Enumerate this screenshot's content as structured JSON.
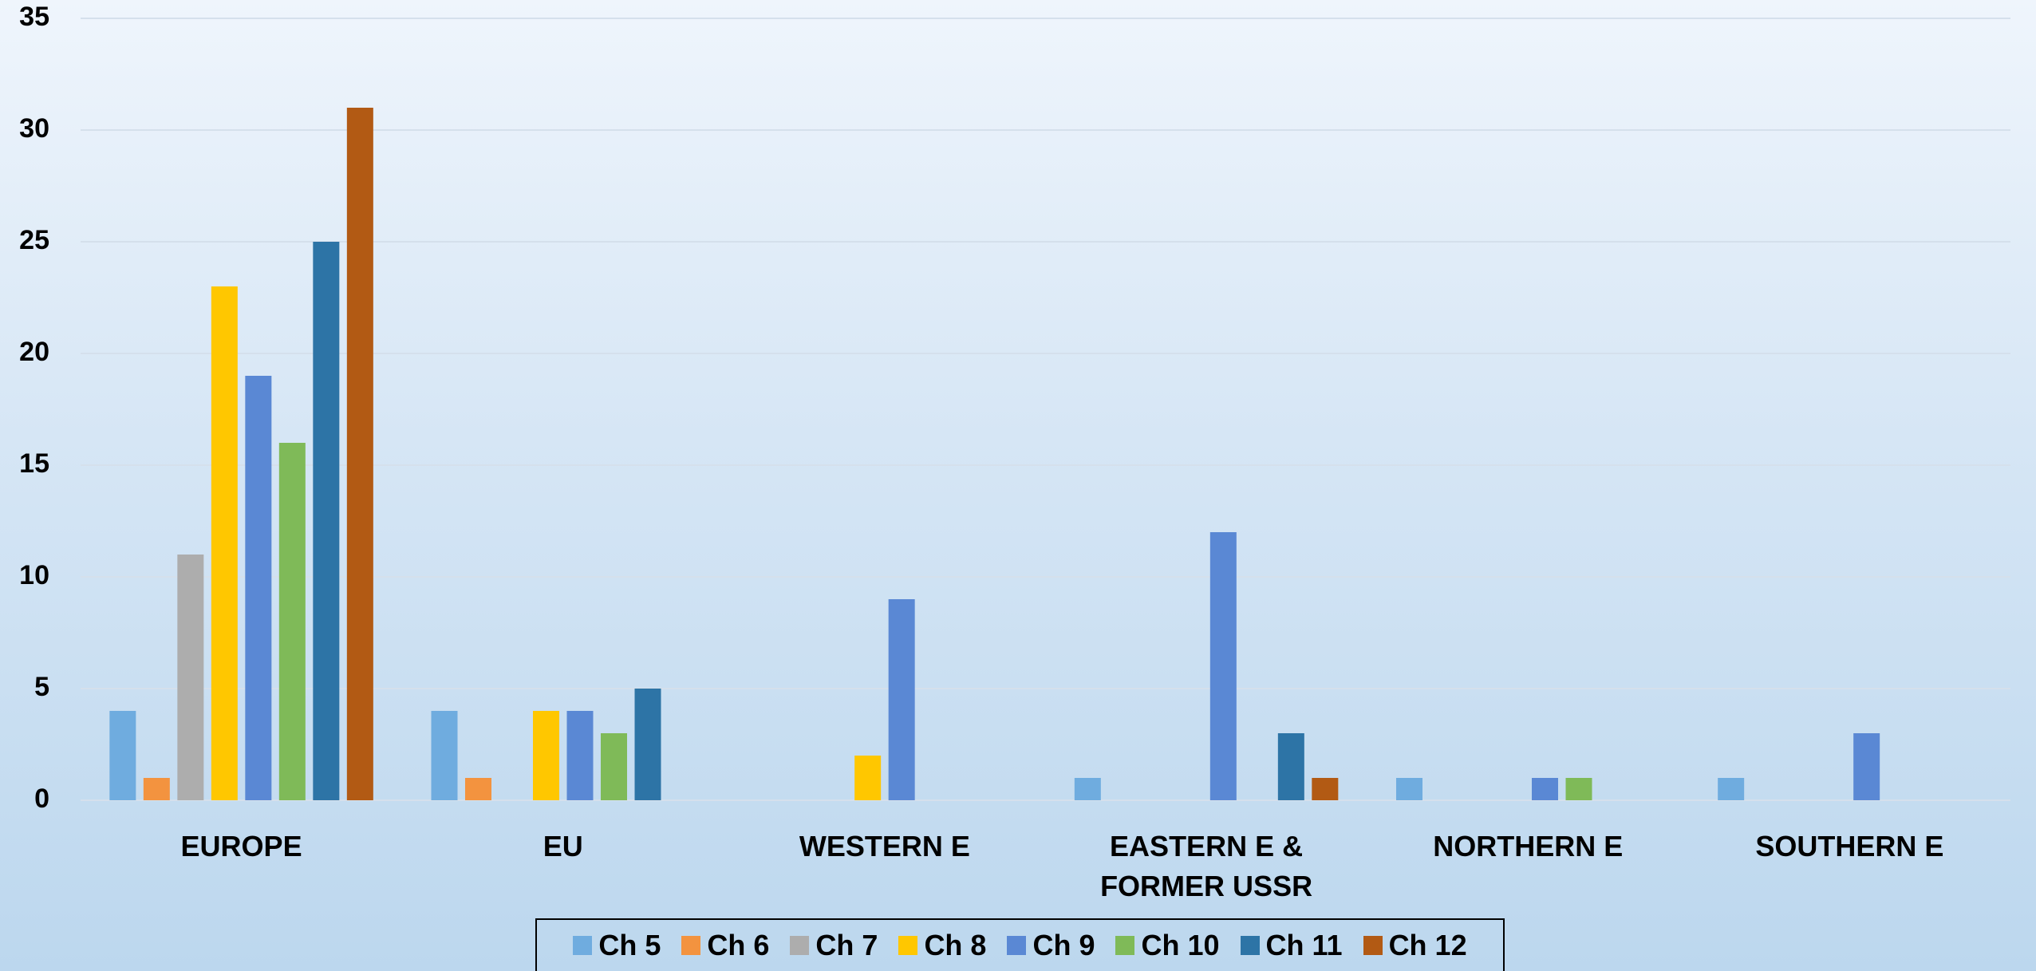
{
  "chart_data": {
    "type": "bar",
    "categories": [
      "EUROPE",
      "EU",
      "WESTERN E",
      "EASTERN E & FORMER USSR",
      "NORTHERN E",
      "SOUTHERN E"
    ],
    "series": [
      {
        "name": "Ch 5",
        "color": "#6FACDF",
        "values": [
          4,
          4,
          0,
          1,
          1,
          1
        ]
      },
      {
        "name": "Ch 6",
        "color": "#F3933F",
        "values": [
          1,
          1,
          0,
          0,
          0,
          0
        ]
      },
      {
        "name": "Ch 7",
        "color": "#ADADAD",
        "values": [
          11,
          0,
          0,
          0,
          0,
          0
        ]
      },
      {
        "name": "Ch 8",
        "color": "#FFC700",
        "values": [
          23,
          4,
          2,
          0,
          0,
          0
        ]
      },
      {
        "name": "Ch 9",
        "color": "#5A88D4",
        "values": [
          19,
          4,
          9,
          12,
          1,
          3
        ]
      },
      {
        "name": "Ch 10",
        "color": "#7FBA58",
        "values": [
          16,
          3,
          0,
          0,
          1,
          0
        ]
      },
      {
        "name": "Ch 11",
        "color": "#2D74A6",
        "values": [
          25,
          5,
          0,
          3,
          0,
          0
        ]
      },
      {
        "name": "Ch 12",
        "color": "#B25A14",
        "values": [
          31,
          0,
          0,
          1,
          0,
          0
        ]
      }
    ],
    "ylim": [
      0,
      35
    ],
    "yticks": [
      0,
      5,
      10,
      15,
      20,
      25,
      30,
      35
    ],
    "grid": true,
    "legend": "bottom"
  }
}
